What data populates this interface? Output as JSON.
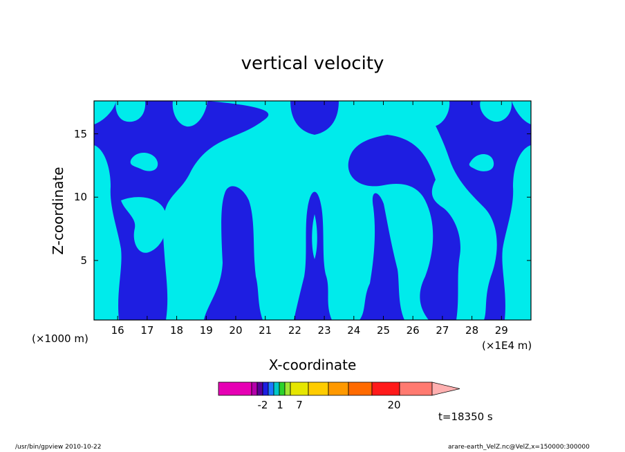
{
  "chart_data": {
    "type": "heatmap",
    "title": "vertical velocity",
    "xlabel": "X-coordinate",
    "ylabel": "Z-coordinate",
    "x_ticks": [
      "16",
      "17",
      "18",
      "19",
      "20",
      "21",
      "22",
      "23",
      "24",
      "25",
      "26",
      "27",
      "28",
      "29"
    ],
    "y_ticks": [
      "5",
      "10",
      "15"
    ],
    "x_unit_left": "(×1000 m)",
    "x_unit_right": "(×1E4 m)",
    "xlim": [
      15.2,
      30.0
    ],
    "ylim": [
      0.3,
      17.6
    ],
    "colorbar": {
      "colors": [
        "#e600b4",
        "#b400aa",
        "#5a0096",
        "#1e1ee1",
        "#1e78ff",
        "#00c8c8",
        "#2bd22b",
        "#a0e632",
        "#e6e600",
        "#ffcc00",
        "#ff9900",
        "#ff6a00",
        "#ff1a1a",
        "#ff7a70",
        "#ffb0b0"
      ],
      "labels": [
        "-2",
        "1",
        "7",
        "20"
      ]
    },
    "fill_colors": {
      "negative": "#1e1ee1",
      "positive": "#00ebeb"
    },
    "time_label": "t=18350 s"
  },
  "footer": {
    "left": "/usr/bin/gpview  2010-10-22",
    "right": "arare-earth_VelZ.nc@VelZ,x=150000:300000"
  }
}
